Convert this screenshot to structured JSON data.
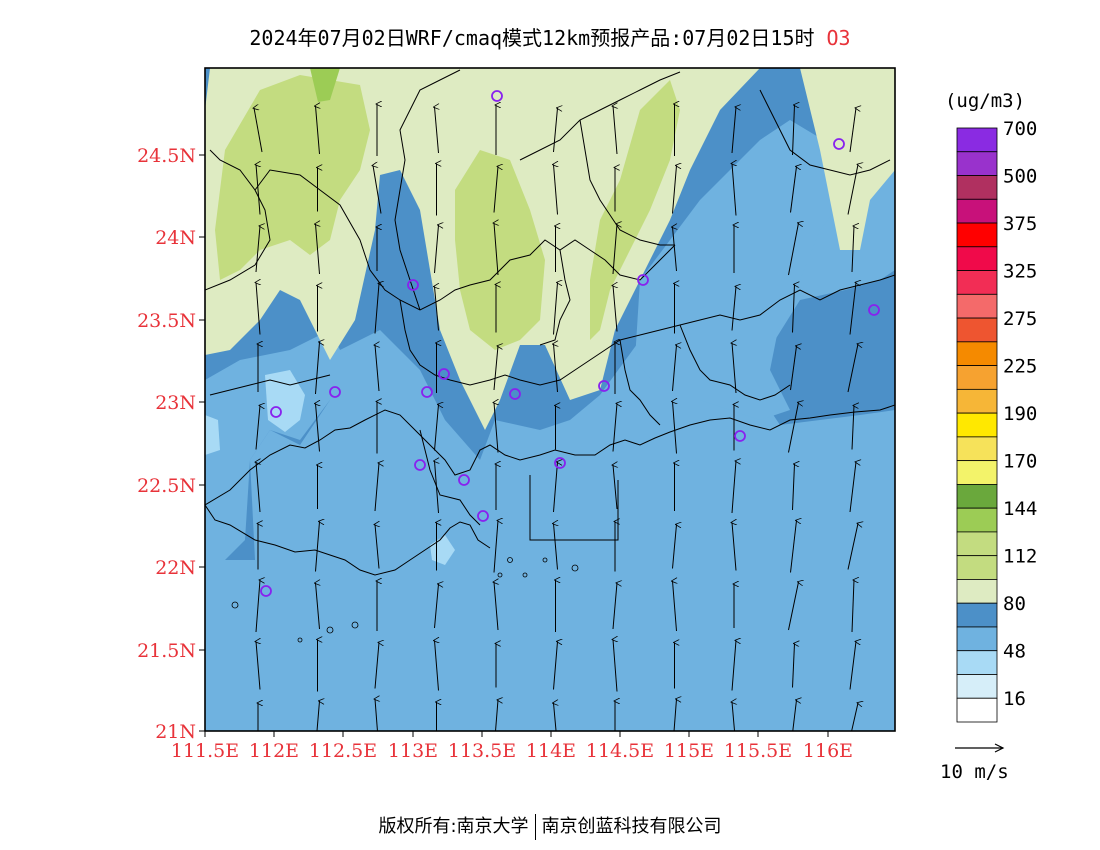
{
  "title": {
    "main": "2024年07月02日WRF/cmaq模式12km预报产品:07月02日15时",
    "species": "O3"
  },
  "map": {
    "lat_labels": [
      "24.5N",
      "24N",
      "23.5N",
      "23N",
      "22.5N",
      "22N",
      "21.5N",
      "21N"
    ],
    "lon_labels": [
      "111.5E",
      "112E",
      "112.5E",
      "113E",
      "113.5E",
      "114E",
      "114.5E",
      "115E",
      "115.5E",
      "116E"
    ],
    "colors": {
      "lightest_blue": "#d6eef9",
      "light_blue": "#a8daf5",
      "mid_blue": "#6fb2e0",
      "dark_blue": "#4c90c8",
      "pale_green": "#deebc2",
      "light_green": "#c3dc80",
      "mid_green": "#9ccc55",
      "station_marker": "#8822ee"
    }
  },
  "colorbar": {
    "unit": "(ug/m3)",
    "colors": [
      "#ffffff",
      "#d6eef9",
      "#a8daf5",
      "#6fb2e0",
      "#4c90c8",
      "#deebc2",
      "#c3dc80",
      "#c3dc80",
      "#9ccc55",
      "#6aa83c",
      "#f3f36a",
      "#f6e25a",
      "#ffe800",
      "#f6b637",
      "#f6a230",
      "#f58a00",
      "#ee5530",
      "#f46a6a",
      "#f22d55",
      "#f00a4a",
      "#ff0000",
      "#c8117a",
      "#b03060",
      "#9932cc",
      "#8a2be2"
    ],
    "labels": [
      "16",
      "48",
      "80",
      "112",
      "144",
      "170",
      "190",
      "225",
      "275",
      "325",
      "375",
      "500",
      "700"
    ]
  },
  "wind_scale": {
    "label": "10 m/s"
  },
  "footer": {
    "left": "版权所有:南京大学",
    "right": "南京创蓝科技有限公司"
  }
}
